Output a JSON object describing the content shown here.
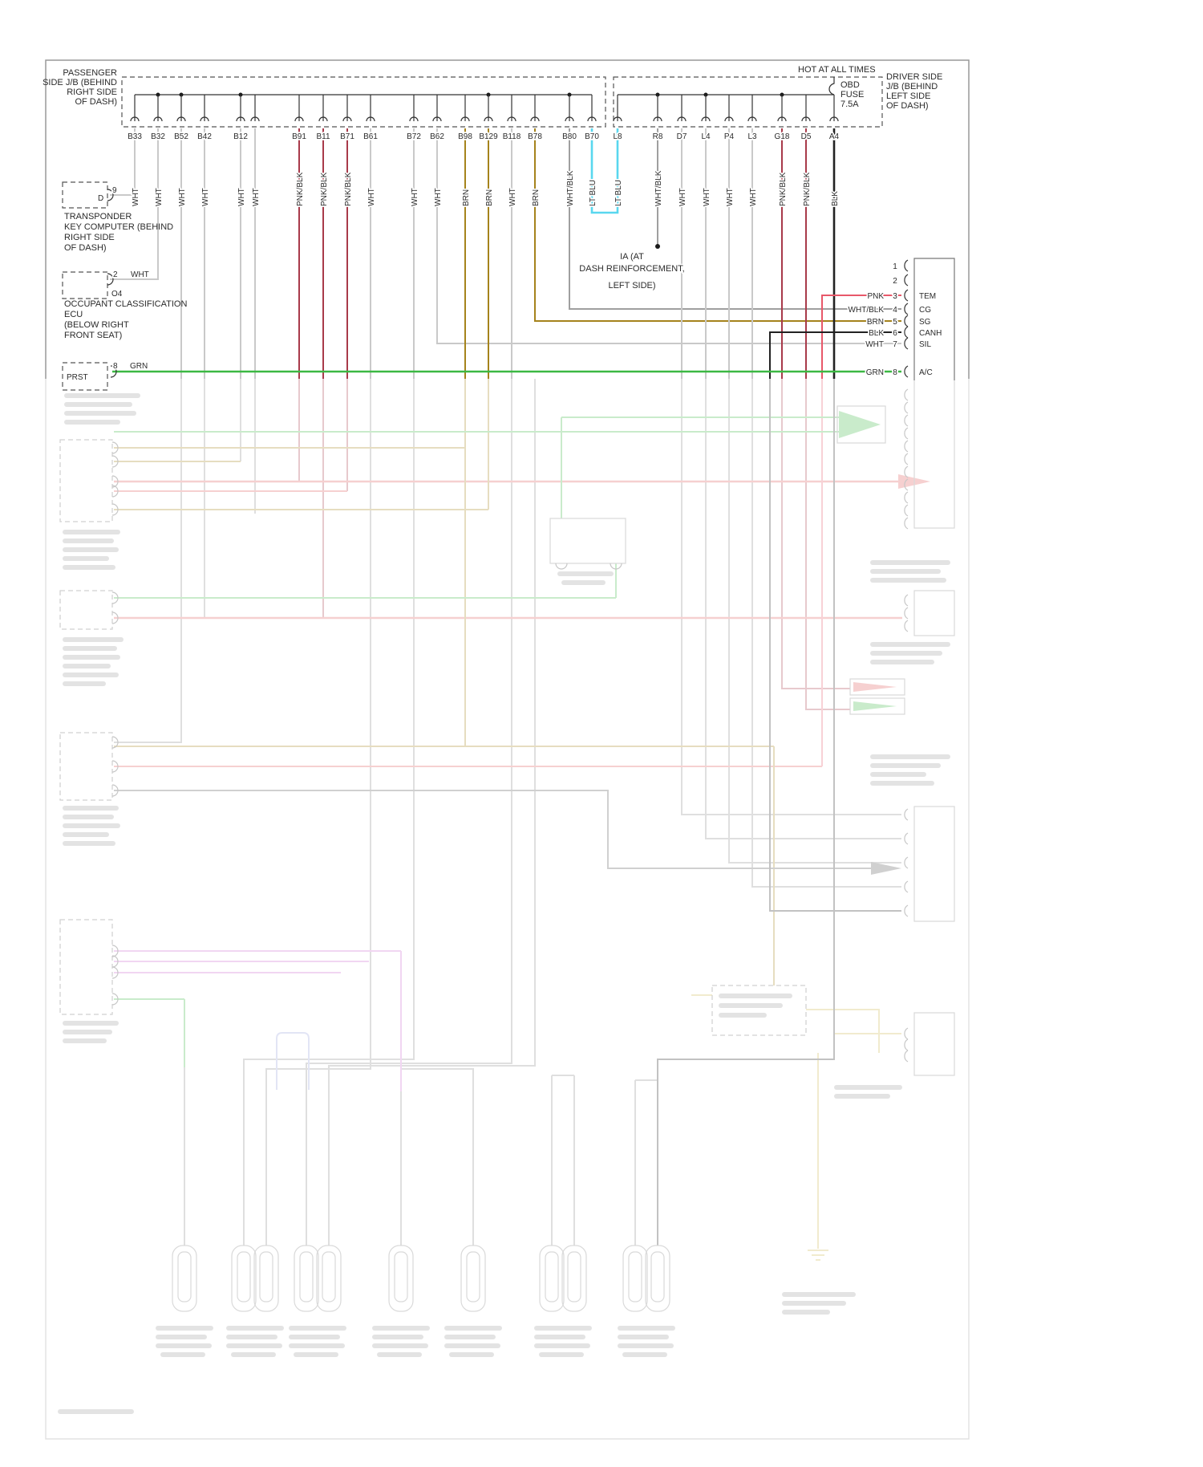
{
  "diagram": {
    "header": {
      "hot_at_all_times": "HOT AT ALL TIMES",
      "passenger_jb_label": [
        "PASSENGER",
        "SIDE J/B (BEHIND",
        "RIGHT SIDE",
        "OF DASH)"
      ],
      "driver_jb_label": [
        "DRIVER SIDE",
        "J/B (BEHIND",
        "LEFT SIDE",
        "OF DASH)"
      ],
      "fuse": {
        "line1": "OBD",
        "line2": "FUSE",
        "rating": "7.5A"
      }
    },
    "junction_pins": {
      "passenger": [
        {
          "label": "B33",
          "wire": "WHT"
        },
        {
          "label": "B32",
          "wire": "WHT"
        },
        {
          "label": "B52",
          "wire": "WHT"
        },
        {
          "label": "B42",
          "wire": "WHT"
        },
        {
          "label": "B12",
          "wire": "WHT"
        },
        {
          "label": "",
          "wire": "WHT"
        },
        {
          "label": "B91",
          "wire": "PNK/BLK"
        },
        {
          "label": "B11",
          "wire": "PNK/BLK"
        },
        {
          "label": "B71",
          "wire": "PNK/BLK"
        },
        {
          "label": "B61",
          "wire": "WHT"
        },
        {
          "label": "B72",
          "wire": "WHT"
        },
        {
          "label": "B62",
          "wire": "WHT"
        },
        {
          "label": "B98",
          "wire": "BRN"
        },
        {
          "label": "B129",
          "wire": "BRN"
        },
        {
          "label": "B118",
          "wire": "WHT"
        },
        {
          "label": "B78",
          "wire": "BRN"
        },
        {
          "label": "B80",
          "wire": "WHT/BLK"
        },
        {
          "label": "B70",
          "wire": "LT BLU"
        }
      ],
      "driver": [
        {
          "label": "L8",
          "wire": "LT BLU"
        },
        {
          "label": "R8",
          "wire": "WHT/BLK"
        },
        {
          "label": "D7",
          "wire": "WHT"
        },
        {
          "label": "L4",
          "wire": "WHT"
        },
        {
          "label": "P4",
          "wire": "WHT"
        },
        {
          "label": "L3",
          "wire": "WHT"
        },
        {
          "label": "G18",
          "wire": "PNK/BLK"
        },
        {
          "label": "D5",
          "wire": "PNK/BLK"
        },
        {
          "label": "A4",
          "wire": "BLK"
        }
      ]
    },
    "components": {
      "transponder": {
        "connector_letter": "D",
        "pin": "9",
        "name_lines": [
          "TRANSPONDER",
          "KEY COMPUTER (BEHIND",
          "RIGHT SIDE",
          "OF DASH)"
        ]
      },
      "occupant_ecu": {
        "pin": "2",
        "wire": "WHT",
        "connector_code": "O4",
        "name_lines": [
          "OCCUPANT CLASSIFICATION",
          "ECU",
          "(BELOW RIGHT",
          "FRONT SEAT)"
        ]
      },
      "prst": {
        "label": "PRST",
        "pin": "8",
        "wire": "GRN"
      },
      "ground_ia": {
        "name_lines": [
          "IA (AT",
          "DASH REINFORCEMENT,",
          "LEFT SIDE)"
        ]
      }
    },
    "dlc3_connector": {
      "pins": [
        {
          "num": "1",
          "wire": "",
          "label": ""
        },
        {
          "num": "2",
          "wire": "",
          "label": ""
        },
        {
          "num": "3",
          "wire": "PNK",
          "label": "TEM"
        },
        {
          "num": "4",
          "wire": "WHT/BLK",
          "label": "CG"
        },
        {
          "num": "5",
          "wire": "BRN",
          "label": "SG"
        },
        {
          "num": "6",
          "wire": "BLK",
          "label": "CANH"
        },
        {
          "num": "7",
          "wire": "WHT",
          "label": "SIL"
        },
        {
          "num": "8",
          "wire": "GRN",
          "label": "A/C"
        }
      ]
    },
    "wire_colors": {
      "WHT": "#c9c9c9",
      "PNK/BLK": "#a83a4a",
      "BRN": "#a5831c",
      "LT BLU": "#59d7ef",
      "WHT/BLK": "#9f9f9f",
      "BLK": "#222222",
      "GRN": "#3cb843",
      "PNK": "#e8586a"
    },
    "faded_palette": {
      "red": "#e05555",
      "yellow": "#cdb84e",
      "green": "#3cb843",
      "magenta": "#cf6ad0",
      "lavender": "#98a0dd",
      "gray": "#8a8a8a",
      "dark": "#555555"
    }
  }
}
